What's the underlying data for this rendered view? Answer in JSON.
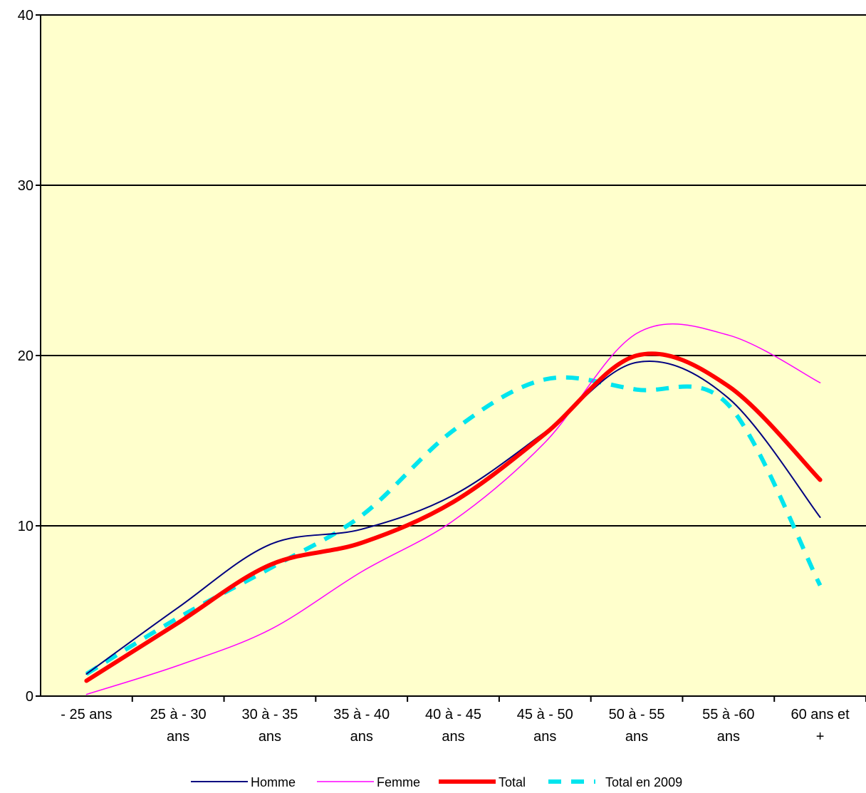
{
  "chart_data": {
    "type": "line",
    "title": "",
    "xlabel": "",
    "ylabel": "",
    "categories": [
      [
        "- 25 ans"
      ],
      [
        "25 à - 30",
        "ans"
      ],
      [
        "30 à - 35",
        "ans"
      ],
      [
        "35 à - 40",
        "ans"
      ],
      [
        "40 à - 45",
        "ans"
      ],
      [
        "45 à - 50",
        "ans"
      ],
      [
        "50 à - 55",
        "ans"
      ],
      [
        "55 à -60",
        "ans"
      ],
      [
        "60 ans et",
        "+"
      ]
    ],
    "ylim": [
      0,
      40
    ],
    "yticks": [
      "0",
      "10",
      "20",
      "30",
      "40"
    ],
    "grid": true,
    "legend_position": "bottom",
    "plot_background": "#ffffcc",
    "series": [
      {
        "name": "Homme",
        "color": "#000080",
        "style": "solid",
        "width": 2,
        "values": [
          1.3,
          5.2,
          8.9,
          9.8,
          11.8,
          15.5,
          19.6,
          17.5,
          10.5
        ]
      },
      {
        "name": "Femme",
        "color": "#ff00ff",
        "style": "solid",
        "width": 1.5,
        "values": [
          0.1,
          1.8,
          3.9,
          7.3,
          10.3,
          14.9,
          21.3,
          21.2,
          18.4
        ]
      },
      {
        "name": "Total",
        "color": "#ff0000",
        "style": "solid",
        "width": 6,
        "values": [
          0.9,
          4.3,
          7.7,
          9.0,
          11.4,
          15.4,
          20.0,
          18.2,
          12.7
        ]
      },
      {
        "name": "Total en 2009",
        "color": "#00e5ee",
        "style": "dashed",
        "width": 6,
        "values": [
          1.3,
          4.6,
          7.5,
          10.6,
          15.6,
          18.6,
          18.0,
          17.1,
          6.5
        ]
      }
    ]
  }
}
